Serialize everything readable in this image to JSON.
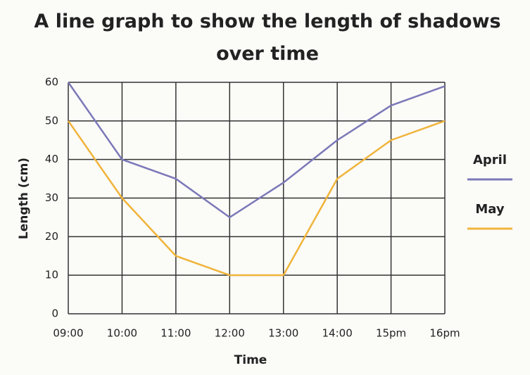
{
  "chart_data": {
    "type": "line",
    "title": "A line graph to show the length of shadows over time",
    "xlabel": "Time",
    "ylabel": "Length (cm)",
    "categories": [
      "09:00",
      "10:00",
      "11:00",
      "12:00",
      "13:00",
      "14:00",
      "15pm",
      "16pm"
    ],
    "series": [
      {
        "name": "April",
        "color": "#7b78b8",
        "values": [
          60,
          40,
          35,
          25,
          34,
          45,
          54,
          59
        ]
      },
      {
        "name": "May",
        "color": "#f0b43a",
        "values": [
          50,
          30,
          15,
          10,
          10,
          35,
          45,
          50
        ]
      }
    ],
    "ylim": [
      0,
      60
    ],
    "yticks": [
      0,
      10,
      20,
      30,
      40,
      50,
      60
    ],
    "grid": true
  }
}
